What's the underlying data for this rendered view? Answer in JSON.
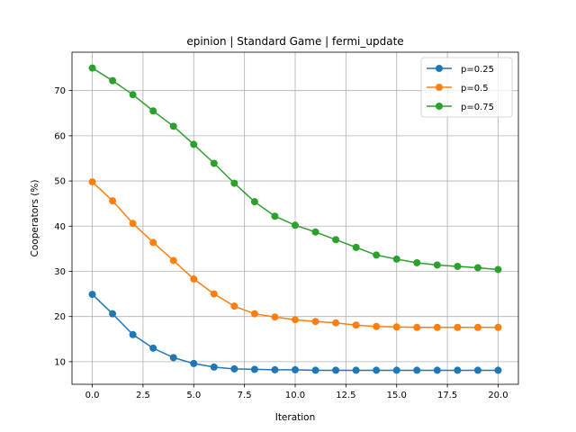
{
  "chart_data": {
    "type": "line",
    "title": "epinion | Standard Game | fermi_update",
    "xlabel": "Iteration",
    "ylabel": "Cooperators (%)",
    "xlim": [
      -1,
      21
    ],
    "ylim": [
      5,
      78.5
    ],
    "xticks": [
      0.0,
      2.5,
      5.0,
      7.5,
      10.0,
      12.5,
      15.0,
      17.5,
      20.0
    ],
    "xtick_labels": [
      "0.0",
      "2.5",
      "5.0",
      "7.5",
      "10.0",
      "12.5",
      "15.0",
      "17.5",
      "20.0"
    ],
    "yticks": [
      10,
      20,
      30,
      40,
      50,
      60,
      70
    ],
    "ytick_labels": [
      "10",
      "20",
      "30",
      "40",
      "50",
      "60",
      "70"
    ],
    "grid": true,
    "legend": "top-right",
    "x": [
      0,
      1,
      2,
      3,
      4,
      5,
      6,
      7,
      8,
      9,
      10,
      11,
      12,
      13,
      14,
      15,
      16,
      17,
      18,
      19,
      20
    ],
    "series": [
      {
        "name": "p=0.25",
        "color": "#1f77b4",
        "values": [
          24.9,
          20.6,
          16.0,
          13.0,
          10.9,
          9.6,
          8.8,
          8.4,
          8.3,
          8.2,
          8.2,
          8.1,
          8.1,
          8.1,
          8.1,
          8.1,
          8.1,
          8.1,
          8.1,
          8.1,
          8.1
        ]
      },
      {
        "name": "p=0.5",
        "color": "#ff7f0e",
        "values": [
          49.8,
          45.6,
          40.6,
          36.4,
          32.4,
          28.3,
          25.0,
          22.3,
          20.6,
          19.9,
          19.3,
          18.9,
          18.6,
          18.1,
          17.8,
          17.7,
          17.6,
          17.6,
          17.6,
          17.6,
          17.6
        ]
      },
      {
        "name": "p=0.75",
        "color": "#2ca02c",
        "values": [
          75.0,
          72.2,
          69.1,
          65.5,
          62.1,
          58.1,
          53.9,
          49.5,
          45.4,
          42.2,
          40.2,
          38.7,
          37.0,
          35.3,
          33.6,
          32.7,
          31.9,
          31.4,
          31.1,
          30.8,
          30.4
        ]
      }
    ]
  }
}
